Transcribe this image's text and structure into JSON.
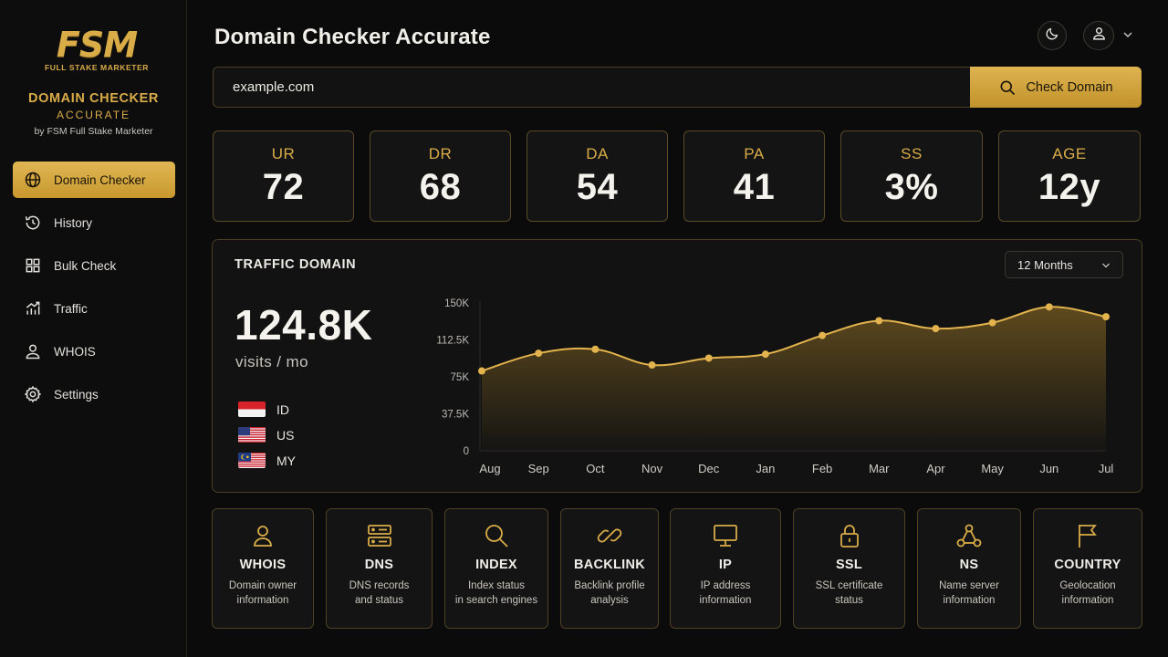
{
  "brand": {
    "logo_text": "FSM",
    "logo_sub": "FULL STAKE MARKETER",
    "title": "DOMAIN CHECKER",
    "subtitle": "ACCURATE",
    "byline": "by FSM Full Stake Marketer",
    "accent": "#d9ac47"
  },
  "sidebar": {
    "items": [
      {
        "label": "Domain Checker",
        "icon": "globe-icon",
        "active": true
      },
      {
        "label": "History",
        "icon": "history-icon",
        "active": false
      },
      {
        "label": "Bulk Check",
        "icon": "grid-icon",
        "active": false
      },
      {
        "label": "Traffic",
        "icon": "trend-chart-icon",
        "active": false
      },
      {
        "label": "WHOIS",
        "icon": "user-icon",
        "active": false
      },
      {
        "label": "Settings",
        "icon": "gear-icon",
        "active": false
      }
    ]
  },
  "header": {
    "title": "Domain Checker Accurate",
    "theme_icon": "moon-icon",
    "user_icon": "user-icon"
  },
  "search": {
    "value": "example.com",
    "button_label": "Check Domain"
  },
  "metrics": [
    {
      "label": "UR",
      "value": "72"
    },
    {
      "label": "DR",
      "value": "68"
    },
    {
      "label": "DA",
      "value": "54"
    },
    {
      "label": "PA",
      "value": "41"
    },
    {
      "label": "SS",
      "value": "3%"
    },
    {
      "label": "AGE",
      "value": "12y"
    }
  ],
  "traffic": {
    "title": "TRAFFIC DOMAIN",
    "period": "12 Months",
    "visits": "124.8K",
    "visits_unit": "visits / mo",
    "countries": [
      {
        "code": "ID",
        "flag": "indonesia-flag-icon"
      },
      {
        "code": "US",
        "flag": "usa-flag-icon"
      },
      {
        "code": "MY",
        "flag": "malaysia-flag-icon"
      }
    ]
  },
  "chart_data": {
    "type": "area",
    "categories": [
      "Aug",
      "Sep",
      "Oct",
      "Nov",
      "Dec",
      "Jan",
      "Feb",
      "Mar",
      "Apr",
      "May",
      "Jun",
      "Jul"
    ],
    "series": [
      {
        "values": [
          81000,
          99000,
          103000,
          87000,
          94000,
          98000,
          117000,
          132000,
          124000,
          130000,
          146000,
          136000
        ]
      }
    ],
    "ytick_labels": [
      "0",
      "37.5K",
      "75K",
      "112.5K",
      "150K"
    ],
    "yticks": [
      0,
      37500,
      75000,
      112500,
      150000
    ],
    "ylim": [
      0,
      150000
    ],
    "grid": false,
    "color": "#e3b34d"
  },
  "features": [
    {
      "title": "WHOIS",
      "desc": [
        "Domain owner",
        "information"
      ],
      "icon": "user-icon"
    },
    {
      "title": "DNS",
      "desc": [
        "DNS records",
        "and status"
      ],
      "icon": "server-icon"
    },
    {
      "title": "INDEX",
      "desc": [
        "Index status",
        "in search engines"
      ],
      "icon": "search-icon"
    },
    {
      "title": "BACKLINK",
      "desc": [
        "Backlink profile",
        "analysis"
      ],
      "icon": "link-icon"
    },
    {
      "title": "IP",
      "desc": [
        "IP address",
        "information"
      ],
      "icon": "monitor-icon"
    },
    {
      "title": "SSL",
      "desc": [
        "SSL certificate",
        "status"
      ],
      "icon": "lock-icon"
    },
    {
      "title": "NS",
      "desc": [
        "Name server",
        "information"
      ],
      "icon": "network-icon"
    },
    {
      "title": "COUNTRY",
      "desc": [
        "Geolocation",
        "information"
      ],
      "icon": "flag-icon"
    }
  ]
}
